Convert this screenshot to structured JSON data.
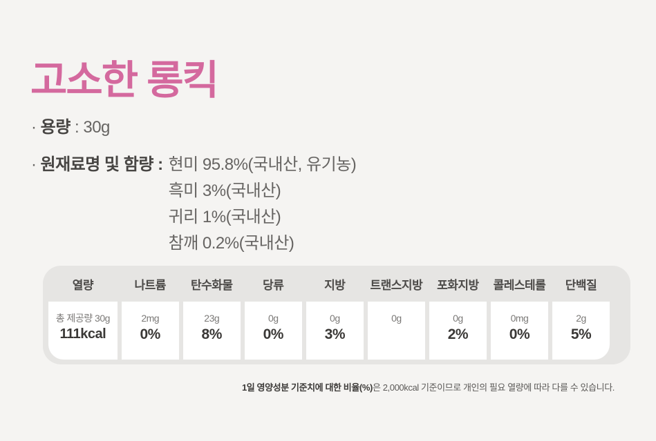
{
  "page": {
    "title": "고소한 롱킥"
  },
  "colors": {
    "background": "#f5f4f2",
    "title_accent": "#d4699e",
    "table_background": "#e6e5e3",
    "cell_background": "#ffffff"
  },
  "info": {
    "volume_bullet": "·",
    "volume_label": "용량",
    "volume_value": ": 30g",
    "ingredients_bullet": "·",
    "ingredients_label": "원재료명 및 함량 :",
    "ingredients": {
      "0": "현미 95.8%(국내산, 유기농)",
      "1": "흑미 3%(국내산)",
      "2": "귀리 1%(국내산)",
      "3": "참깨 0.2%(국내산)"
    }
  },
  "nutrition": {
    "columns": {
      "0": {
        "label": "열량",
        "amount": "총 제공량 30g",
        "value": "111kcal"
      },
      "1": {
        "label": "나트륨",
        "amount": "2mg",
        "value": "0%"
      },
      "2": {
        "label": "탄수화물",
        "amount": "23g",
        "value": "8%"
      },
      "3": {
        "label": "당류",
        "amount": "0g",
        "value": "0%"
      },
      "4": {
        "label": "지방",
        "amount": "0g",
        "value": "3%"
      },
      "5": {
        "label": "트랜스지방",
        "amount": "0g",
        "value": ""
      },
      "6": {
        "label": "포화지방",
        "amount": "0g",
        "value": "2%"
      },
      "7": {
        "label": "콜레스테롤",
        "amount": "0mg",
        "value": "0%"
      },
      "8": {
        "label": "단백질",
        "amount": "2g",
        "value": "5%"
      }
    },
    "footnote_bold": "1일 영양성분 기준치에 대한 비율(%)",
    "footnote_rest": "은 2,000kcal 기준이므로 개인의 필요 열량에 따라 다를 수 있습니다."
  }
}
